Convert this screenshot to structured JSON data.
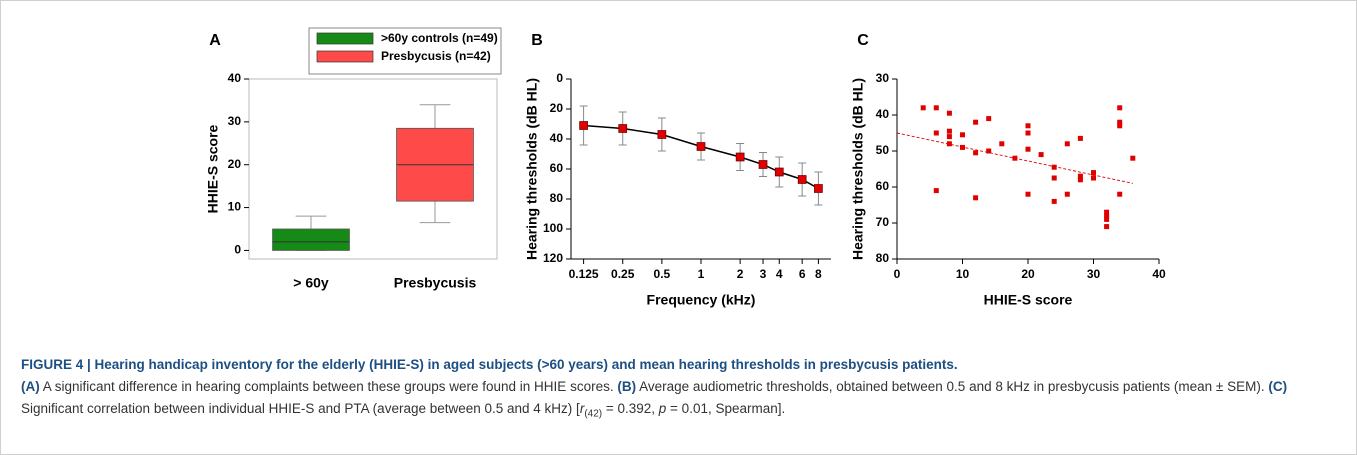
{
  "chart_data": [
    {
      "type": "box",
      "panel": "A",
      "ylabel": "HHIE-S score",
      "ylim": [
        -2,
        40
      ],
      "yticks": [
        0,
        10,
        20,
        30,
        40
      ],
      "boxes": [
        {
          "category": "> 60y",
          "name": ">60y controls (n=49)",
          "color": "#168a16",
          "whisker_low": 0,
          "q1": 0,
          "median": 2,
          "q3": 5,
          "whisker_high": 8
        },
        {
          "category": "Presbycusis",
          "name": "Presbycusis (n=42)",
          "color": "#ff4a4a",
          "whisker_low": 6.5,
          "q1": 11.5,
          "median": 20,
          "q3": 28.5,
          "whisker_high": 34
        }
      ]
    },
    {
      "type": "line",
      "panel": "B",
      "xlabel": "Frequency (kHz)",
      "ylabel": "Hearing thresholds (dB HL)",
      "xscale": "log",
      "xlim": [
        0.1,
        10
      ],
      "xticks": [
        0.125,
        0.25,
        0.5,
        1,
        2,
        3,
        4,
        6,
        8
      ],
      "ylim": [
        0,
        120
      ],
      "y_inverted": true,
      "yticks": [
        0,
        20,
        40,
        60,
        80,
        100,
        120
      ],
      "x": [
        0.125,
        0.25,
        0.5,
        1,
        2,
        3,
        4,
        6,
        8
      ],
      "series": [
        {
          "color": "#e00000",
          "values": [
            31,
            33,
            37,
            45,
            52,
            57,
            62,
            67,
            73
          ],
          "errors": [
            13,
            11,
            11,
            9,
            9,
            8,
            10,
            11,
            11
          ]
        }
      ]
    },
    {
      "type": "scatter",
      "panel": "C",
      "xlabel": "HHIE-S score",
      "ylabel": "Hearing thresholds (dB HL)",
      "xlim": [
        0,
        40
      ],
      "xticks": [
        0,
        10,
        20,
        30,
        40
      ],
      "ylim": [
        30,
        80
      ],
      "y_inverted": true,
      "yticks": [
        30,
        40,
        50,
        60,
        70,
        80
      ],
      "color": "#e00000",
      "x": [
        4,
        6,
        6,
        6,
        8,
        8,
        8,
        8,
        10,
        10,
        12,
        12,
        12,
        14,
        14,
        16,
        18,
        20,
        20,
        20,
        20,
        22,
        24,
        24,
        24,
        26,
        26,
        28,
        28,
        28,
        30,
        30,
        32,
        32,
        32,
        32,
        34,
        34,
        34,
        34,
        36
      ],
      "y": [
        38,
        38,
        45,
        61,
        39.5,
        44.5,
        46,
        48,
        45.5,
        49,
        42,
        50.5,
        63,
        41,
        50,
        48,
        52,
        43,
        45,
        49.5,
        62,
        51,
        54.5,
        57.5,
        64,
        48,
        62,
        46.5,
        57,
        58,
        56,
        57.5,
        67,
        68,
        69,
        71,
        38,
        42,
        43,
        62,
        52
      ],
      "trend": {
        "x": [
          0,
          36
        ],
        "y": [
          45,
          59
        ]
      }
    }
  ],
  "caption": {
    "title": "FIGURE 4 | Hearing handicap inventory for the elderly (HHIE-S) in aged subjects (>60 years) and mean hearing thresholds in presbycusis patients.",
    "runs": [
      {
        "text": "(A)",
        "bold": true
      },
      {
        "text": " A significant difference in hearing complaints between these groups were found in HHIE scores. "
      },
      {
        "text": "(B)",
        "bold": true
      },
      {
        "text": " Average audiometric thresholds, obtained between 0.5 and 8 kHz in presbycusis patients (mean ± SEM). "
      },
      {
        "text": "(C)",
        "bold": true
      },
      {
        "text": " Significant correlation between individual HHIE-S and PTA (average between 0.5 and 4 kHz) ["
      },
      {
        "text": "r",
        "italic": true
      },
      {
        "text": "(42)",
        "sub": true
      },
      {
        "text": " = 0.392, "
      },
      {
        "text": "p",
        "italic": true
      },
      {
        "text": " = 0.01, Spearman]."
      }
    ]
  }
}
